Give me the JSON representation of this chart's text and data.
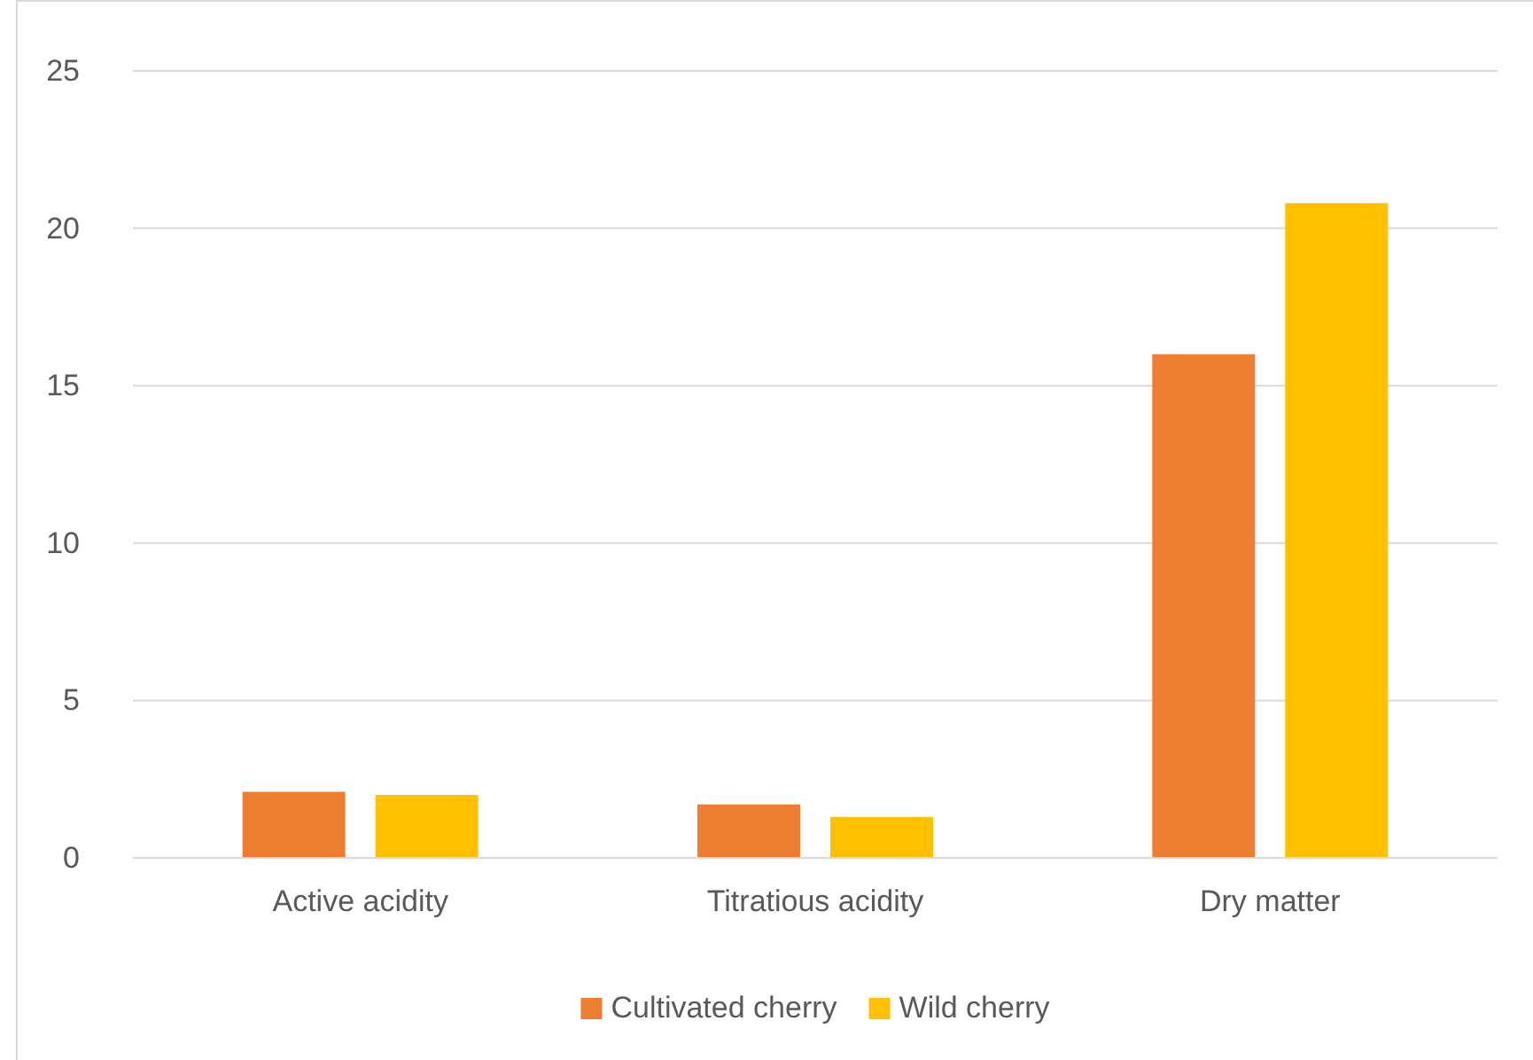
{
  "chart_data": {
    "type": "bar",
    "categories": [
      "Active acidity",
      "Titratious acidity",
      "Dry matter"
    ],
    "series": [
      {
        "name": "Cultivated cherry",
        "color": "#ed7d31",
        "values": [
          2.1,
          1.7,
          16.0
        ]
      },
      {
        "name": "Wild cherry",
        "color": "#ffc000",
        "values": [
          2.0,
          1.3,
          20.8
        ]
      }
    ],
    "ylim": [
      0,
      25
    ],
    "yticks": [
      0,
      5,
      10,
      15,
      20,
      25
    ],
    "grid": "y",
    "legend": "bottom"
  }
}
